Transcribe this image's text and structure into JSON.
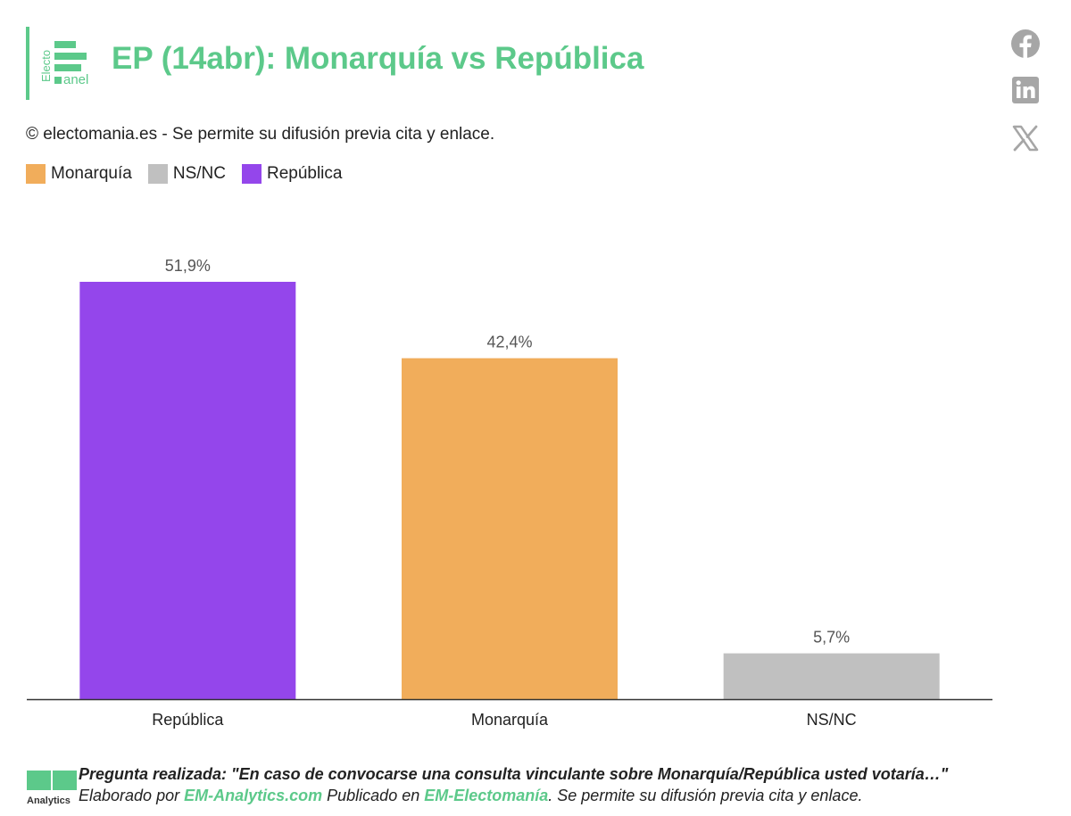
{
  "header": {
    "logo_vertical_text": "Electo",
    "logo_bottom_text": "anel",
    "title": "EP (14abr): Monarquía vs República"
  },
  "copyright": "© electomania.es - Se permite su difusión previa cita y enlace.",
  "social": {
    "icons": [
      "facebook-icon",
      "linkedin-icon",
      "x-icon"
    ]
  },
  "colors": {
    "accent": "#5cc98a",
    "republica": "#9446eb",
    "monarquia": "#f1ad5b",
    "nsnc": "#c0c0c0",
    "axis": "#333333"
  },
  "chart_data": {
    "type": "bar",
    "legend": [
      {
        "label": "Monarquía",
        "color": "#f1ad5b"
      },
      {
        "label": "NS/NC",
        "color": "#c0c0c0"
      },
      {
        "label": "República",
        "color": "#9446eb"
      }
    ],
    "legend_position": "top-left",
    "categories": [
      "República",
      "Monarquía",
      "NS/NC"
    ],
    "values": [
      51.9,
      42.4,
      5.7
    ],
    "value_labels": [
      "51,9%",
      "42,4%",
      "5,7%"
    ],
    "bar_colors": [
      "#9446eb",
      "#f1ad5b",
      "#c0c0c0"
    ],
    "ylim": [
      0,
      51.9
    ],
    "grid": false
  },
  "footer": {
    "logo_text": "em",
    "logo_subtext": "Analytics",
    "line1": "Pregunta realizada: \"En caso de convocarse una consulta vinculante sobre Monarquía/República usted votaría…\"",
    "line2_prefix": "Elaborado por ",
    "line2_link1": "EM-Analytics.com",
    "line2_middle": " Publicado en ",
    "line2_link2": "EM-Electomanía",
    "line2_suffix": ". Se permite su difusión previa cita y enlace."
  }
}
